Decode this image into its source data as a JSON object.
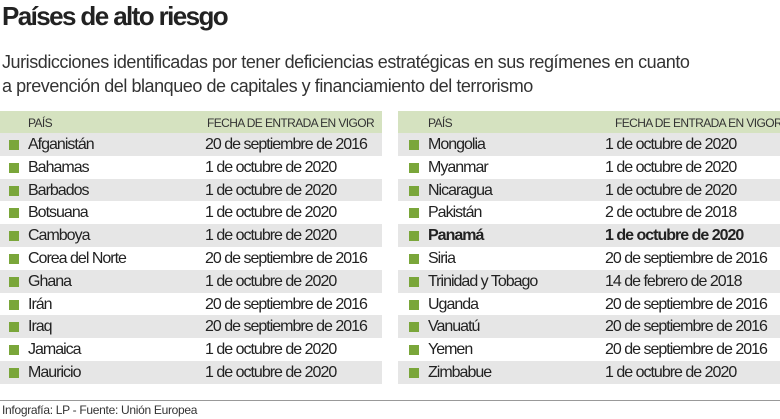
{
  "title": "Países de alto riesgo",
  "subtitle_line1": "Jurisdicciones identificadas por tener deficiencias estratégicas en sus regímenes en cuanto",
  "subtitle_line2": "a prevención del blanqueo de capitales y financiamiento del terrorismo",
  "columns": {
    "country": "PAÍS",
    "date": "FECHA DE ENTRADA EN VIGOR"
  },
  "colors": {
    "header_bg": "#d5e2c0",
    "bullet": "#7aa63a",
    "stripe": "#e6e6e6"
  },
  "left": [
    {
      "country": "Afganistán",
      "date": "20 de septiembre de 2016"
    },
    {
      "country": "Bahamas",
      "date": "1 de octubre de 2020"
    },
    {
      "country": "Barbados",
      "date": "1 de octubre de 2020"
    },
    {
      "country": "Botsuana",
      "date": "1 de octubre de 2020"
    },
    {
      "country": "Camboya",
      "date": "1 de octubre de 2020"
    },
    {
      "country": "Corea del Norte",
      "date": "20 de septiembre de 2016"
    },
    {
      "country": "Ghana",
      "date": "1 de octubre de 2020"
    },
    {
      "country": "Irán",
      "date": "20 de septiembre de 2016"
    },
    {
      "country": "Iraq",
      "date": "20 de septiembre de 2016"
    },
    {
      "country": "Jamaica",
      "date": "1 de octubre de 2020"
    },
    {
      "country": "Mauricio",
      "date": "1 de octubre de 2020"
    }
  ],
  "right": [
    {
      "country": "Mongolia",
      "date": "1 de octubre de 2020"
    },
    {
      "country": "Myanmar",
      "date": "1 de octubre de 2020"
    },
    {
      "country": "Nicaragua",
      "date": "1 de octubre de 2020"
    },
    {
      "country": "Pakistán",
      "date": "2 de octubre de 2018"
    },
    {
      "country": "Panamá",
      "date": "1 de octubre de 2020",
      "highlight": true
    },
    {
      "country": "Siria",
      "date": "20 de septiembre de 2016"
    },
    {
      "country": "Trinidad y Tobago",
      "date": "14 de febrero de 2018"
    },
    {
      "country": "Uganda",
      "date": "20 de septiembre de 2016"
    },
    {
      "country": "Vanuatú",
      "date": "20 de septiembre de 2016"
    },
    {
      "country": "Yemen",
      "date": "20 de septiembre de 2016"
    },
    {
      "country": "Zimbabue",
      "date": "1 de octubre de 2020"
    }
  ],
  "footer": "Infografía: LP - Fuente: Unión Europea"
}
